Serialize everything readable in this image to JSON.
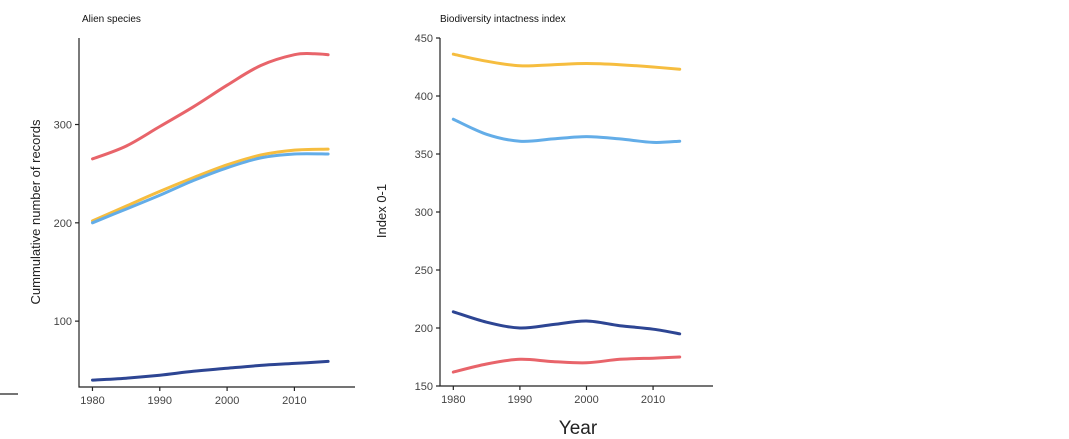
{
  "chart_data": [
    {
      "type": "line",
      "title": "Alien species",
      "xlabel": "",
      "ylabel": "Cummulative number of records",
      "xlim": [
        1978,
        2019
      ],
      "ylim": [
        33,
        388
      ],
      "xticks": [
        1980,
        1990,
        2000,
        2010
      ],
      "yticks": [
        100,
        200,
        300
      ],
      "series": [
        {
          "color": "#e8646a",
          "x": [
            1980,
            1985,
            1990,
            1995,
            2000,
            2005,
            2010,
            2013,
            2015
          ],
          "y": [
            265,
            278,
            298,
            318,
            340,
            360,
            371,
            372,
            371
          ]
        },
        {
          "color": "#f6bd3f",
          "x": [
            1980,
            1985,
            1990,
            1995,
            2000,
            2005,
            2010,
            2015
          ],
          "y": [
            202,
            217,
            232,
            246,
            259,
            269,
            274,
            275
          ]
        },
        {
          "color": "#63ade8",
          "x": [
            1980,
            1985,
            1990,
            1995,
            2000,
            2005,
            2010,
            2015
          ],
          "y": [
            200,
            214,
            228,
            243,
            256,
            266,
            270,
            270
          ]
        },
        {
          "color": "#2d4593",
          "x": [
            1980,
            1985,
            1990,
            1995,
            2000,
            2005,
            2010,
            2015
          ],
          "y": [
            40,
            42,
            45,
            49,
            52,
            55,
            57,
            59
          ]
        }
      ]
    },
    {
      "type": "line",
      "title": "Biodiversity intactness index",
      "xlabel": "Year",
      "ylabel": "Index 0-1",
      "xlim": [
        1978,
        2019
      ],
      "ylim": [
        150,
        450
      ],
      "xticks": [
        1980,
        1990,
        2000,
        2010
      ],
      "yticks": [
        150,
        200,
        250,
        300,
        350,
        400,
        450
      ],
      "series": [
        {
          "color": "#f6bd3f",
          "x": [
            1980,
            1985,
            1990,
            1995,
            2000,
            2005,
            2010,
            2014
          ],
          "y": [
            436,
            430,
            426,
            427,
            428,
            427,
            425,
            423
          ]
        },
        {
          "color": "#63ade8",
          "x": [
            1980,
            1985,
            1990,
            1995,
            2000,
            2005,
            2010,
            2014
          ],
          "y": [
            380,
            367,
            361,
            363,
            365,
            363,
            360,
            361
          ]
        },
        {
          "color": "#2d4593",
          "x": [
            1980,
            1985,
            1990,
            1995,
            2000,
            2005,
            2010,
            2014
          ],
          "y": [
            214,
            205,
            200,
            203,
            206,
            202,
            199,
            195
          ]
        },
        {
          "color": "#e8646a",
          "x": [
            1980,
            1985,
            1990,
            1995,
            2000,
            2005,
            2010,
            2014
          ],
          "y": [
            162,
            169,
            173,
            171,
            170,
            173,
            174,
            175
          ]
        }
      ]
    }
  ]
}
